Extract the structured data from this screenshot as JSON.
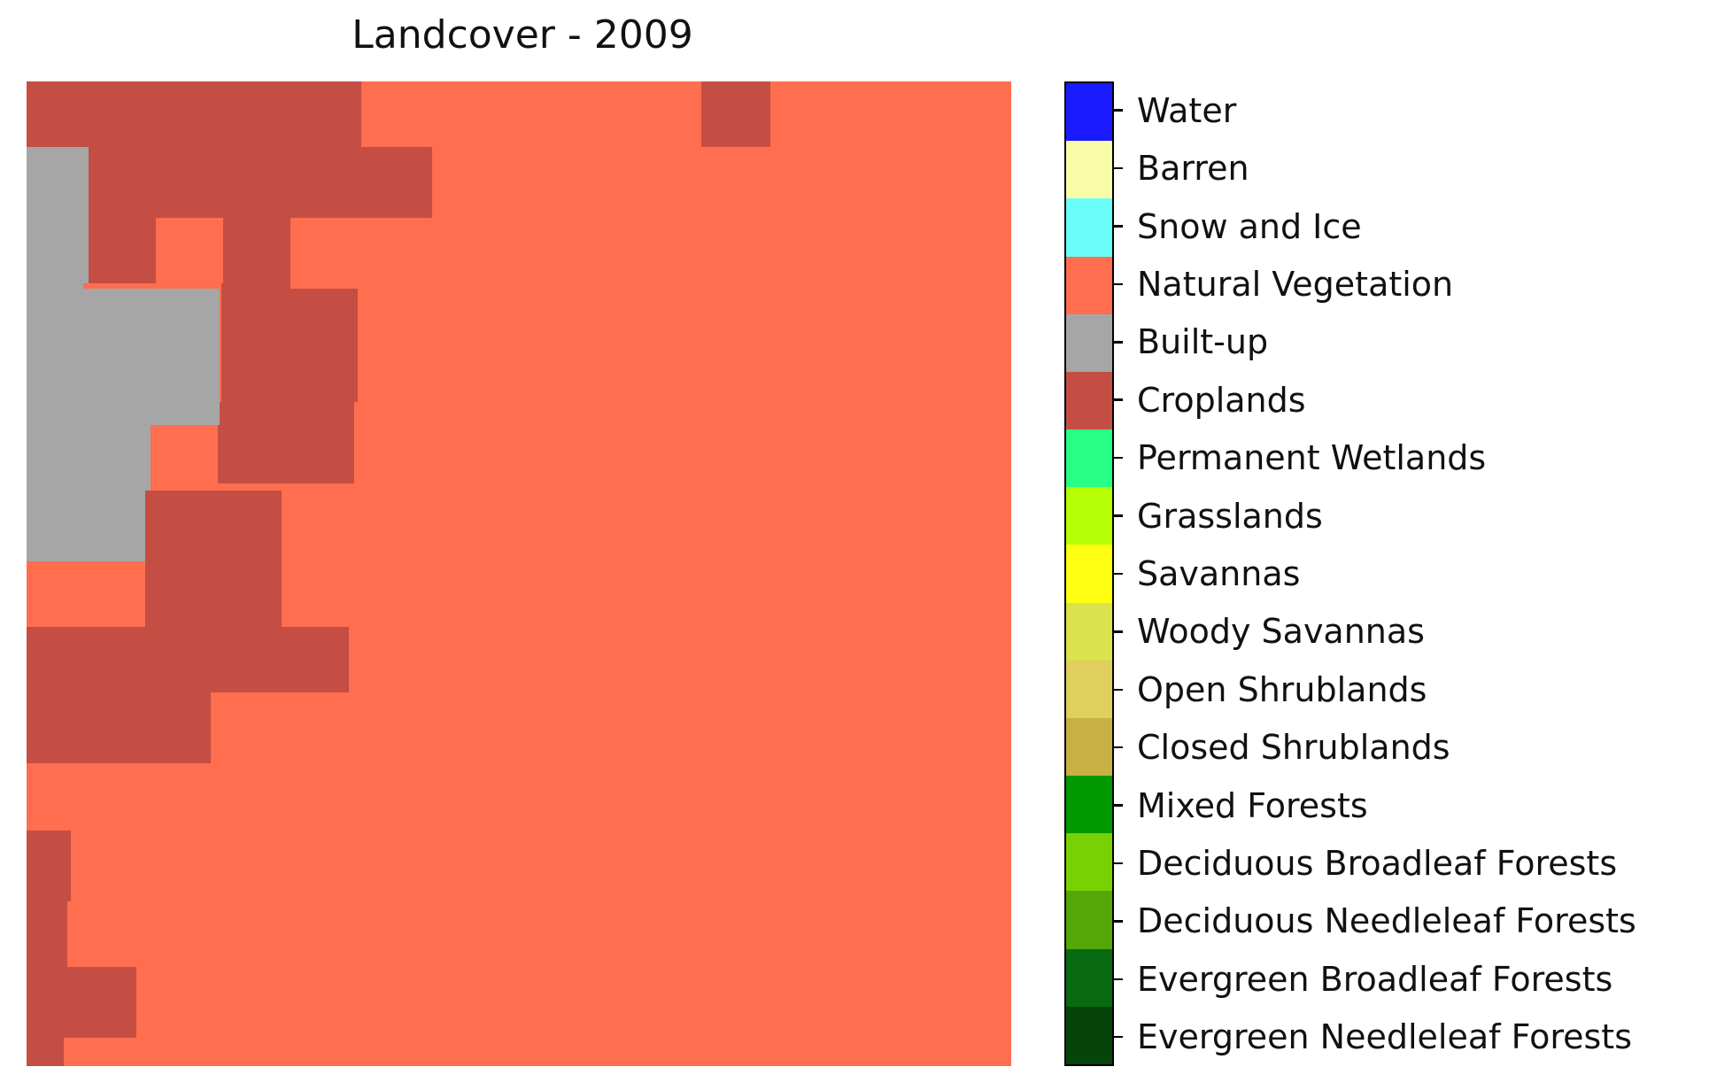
{
  "title": "Landcover - 2009",
  "colors": {
    "natural_vegetation": "#ff6e4f",
    "croplands": "#c44e43",
    "built_up": "#a6a6a6"
  },
  "legend": [
    {
      "label": "Water",
      "color": "#1a1aff"
    },
    {
      "label": "Barren",
      "color": "#f8fca6"
    },
    {
      "label": "Snow and Ice",
      "color": "#69fff8"
    },
    {
      "label": "Natural Vegetation",
      "color": "#ff6e4f"
    },
    {
      "label": "Built-up",
      "color": "#a6a6a6"
    },
    {
      "label": "Croplands",
      "color": "#c44e43"
    },
    {
      "label": "Permanent Wetlands",
      "color": "#27ff87"
    },
    {
      "label": "Grasslands",
      "color": "#b6ff05"
    },
    {
      "label": "Savannas",
      "color": "#ffff14"
    },
    {
      "label": "Woody Savannas",
      "color": "#dae24c"
    },
    {
      "label": "Open Shrublands",
      "color": "#dfd05d"
    },
    {
      "label": "Closed Shrublands",
      "color": "#c7b144"
    },
    {
      "label": "Mixed Forests",
      "color": "#009900"
    },
    {
      "label": "Deciduous Broadleaf Forests",
      "color": "#78d203"
    },
    {
      "label": "Deciduous Needleleaf Forests",
      "color": "#54a708"
    },
    {
      "label": "Evergreen Broadleaf Forests",
      "color": "#086a10"
    },
    {
      "label": "Evergreen Needleleaf Forests",
      "color": "#05450a"
    }
  ]
}
